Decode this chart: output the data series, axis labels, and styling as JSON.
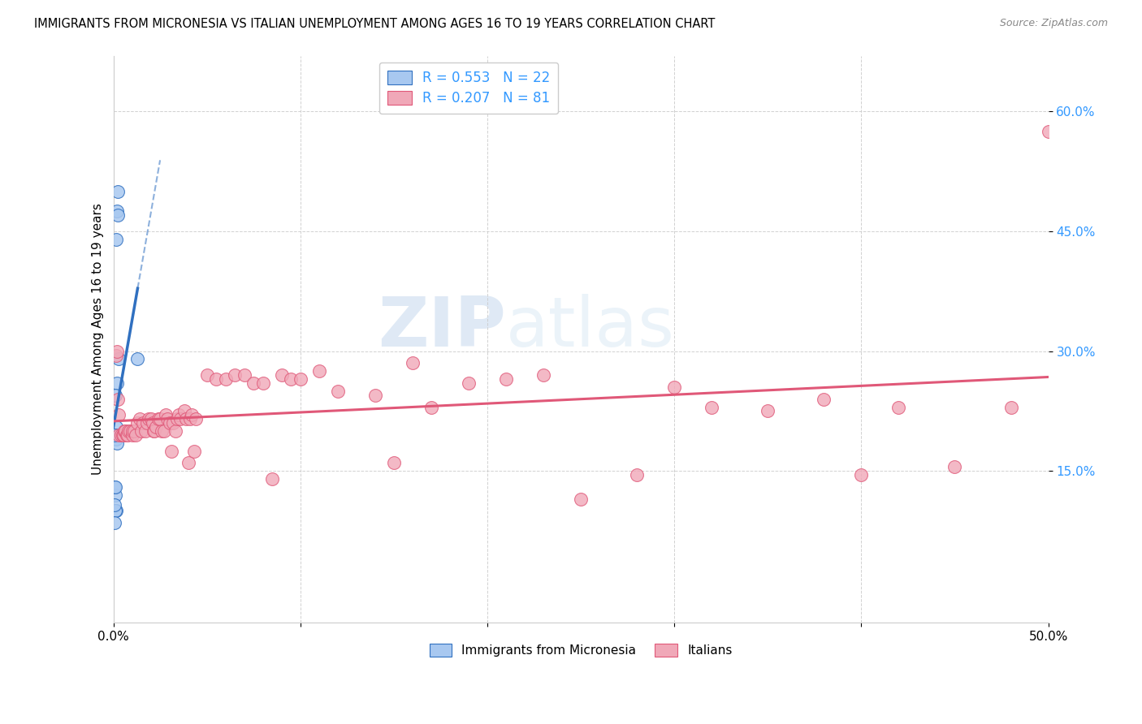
{
  "title": "IMMIGRANTS FROM MICRONESIA VS ITALIAN UNEMPLOYMENT AMONG AGES 16 TO 19 YEARS CORRELATION CHART",
  "source": "Source: ZipAtlas.com",
  "ylabel": "Unemployment Among Ages 16 to 19 years",
  "right_yticks": [
    0.15,
    0.3,
    0.45,
    0.6
  ],
  "right_ytick_labels": [
    "15.0%",
    "30.0%",
    "45.0%",
    "60.0%"
  ],
  "xlim": [
    0.0,
    0.5
  ],
  "ylim": [
    -0.04,
    0.67
  ],
  "legend_label1": "Immigrants from Micronesia",
  "legend_label2": "Italians",
  "color_blue": "#a8c8f0",
  "color_pink": "#f0a8b8",
  "color_blue_line": "#3070c0",
  "color_pink_line": "#e05878",
  "watermark_zip": "ZIP",
  "watermark_atlas": "atlas",
  "micronesia_x": [
    0.0008,
    0.002,
    0.0025,
    0.0025,
    0.0015,
    0.002,
    0.003,
    0.001,
    0.0015,
    0.0025,
    0.001,
    0.0015,
    0.002,
    0.001,
    0.0015,
    0.001,
    0.0008,
    0.0008,
    0.0012,
    0.0008,
    0.0008,
    0.013
  ],
  "micronesia_y": [
    0.195,
    0.475,
    0.5,
    0.47,
    0.44,
    0.26,
    0.29,
    0.245,
    0.205,
    0.195,
    0.195,
    0.19,
    0.185,
    0.12,
    0.1,
    0.1,
    0.195,
    0.13,
    0.13,
    0.108,
    0.085,
    0.29
  ],
  "italians_x": [
    0.0015,
    0.002,
    0.0025,
    0.003,
    0.003,
    0.004,
    0.005,
    0.0055,
    0.006,
    0.0065,
    0.007,
    0.0075,
    0.008,
    0.009,
    0.01,
    0.01,
    0.011,
    0.012,
    0.013,
    0.014,
    0.015,
    0.016,
    0.017,
    0.018,
    0.019,
    0.02,
    0.021,
    0.0215,
    0.022,
    0.023,
    0.024,
    0.025,
    0.026,
    0.027,
    0.028,
    0.029,
    0.03,
    0.031,
    0.032,
    0.033,
    0.034,
    0.035,
    0.036,
    0.038,
    0.039,
    0.04,
    0.041,
    0.042,
    0.043,
    0.044,
    0.05,
    0.055,
    0.06,
    0.065,
    0.07,
    0.075,
    0.08,
    0.085,
    0.09,
    0.095,
    0.1,
    0.11,
    0.12,
    0.14,
    0.15,
    0.16,
    0.17,
    0.19,
    0.21,
    0.23,
    0.25,
    0.28,
    0.3,
    0.32,
    0.35,
    0.38,
    0.4,
    0.42,
    0.45,
    0.48,
    0.5
  ],
  "italians_y": [
    0.295,
    0.3,
    0.24,
    0.22,
    0.195,
    0.195,
    0.195,
    0.195,
    0.2,
    0.2,
    0.195,
    0.195,
    0.2,
    0.2,
    0.195,
    0.2,
    0.2,
    0.195,
    0.21,
    0.215,
    0.2,
    0.21,
    0.2,
    0.21,
    0.215,
    0.215,
    0.21,
    0.2,
    0.2,
    0.205,
    0.215,
    0.215,
    0.2,
    0.2,
    0.22,
    0.215,
    0.21,
    0.175,
    0.21,
    0.2,
    0.215,
    0.22,
    0.215,
    0.225,
    0.215,
    0.16,
    0.215,
    0.22,
    0.175,
    0.215,
    0.27,
    0.265,
    0.265,
    0.27,
    0.27,
    0.26,
    0.26,
    0.14,
    0.27,
    0.265,
    0.265,
    0.275,
    0.25,
    0.245,
    0.16,
    0.285,
    0.23,
    0.26,
    0.265,
    0.27,
    0.115,
    0.145,
    0.255,
    0.23,
    0.225,
    0.24,
    0.145,
    0.23,
    0.155,
    0.23,
    0.575
  ]
}
